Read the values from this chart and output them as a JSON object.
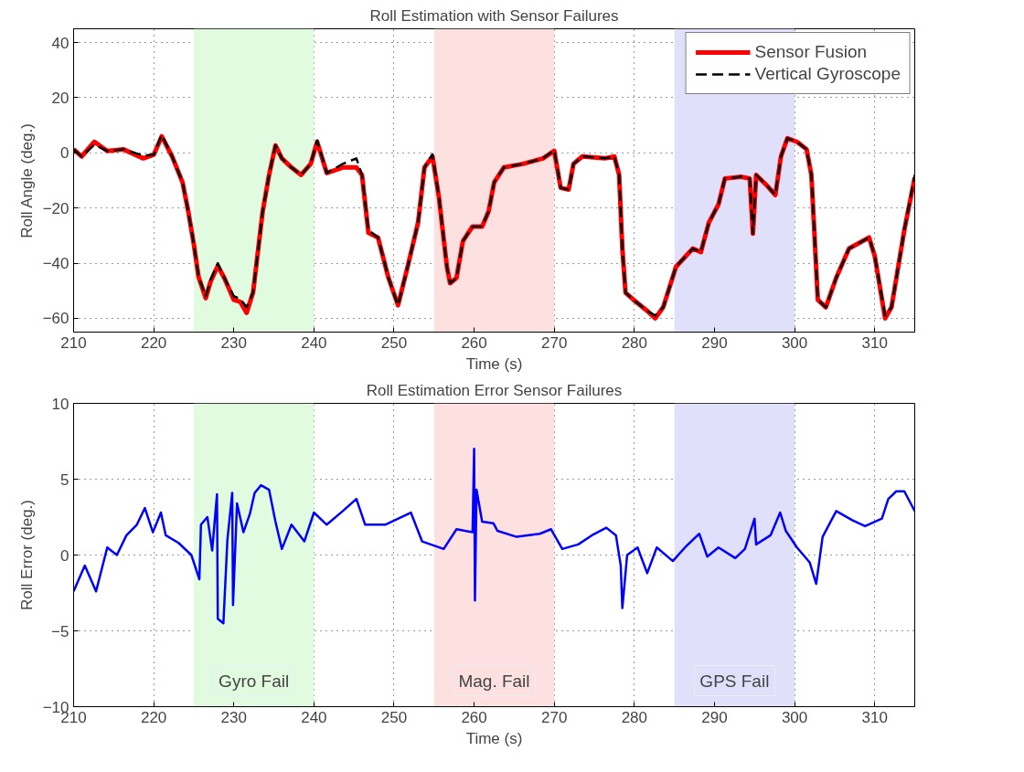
{
  "chart_data": [
    {
      "type": "line",
      "title": "Roll Estimation with Sensor Failures",
      "xlabel": "Time (s)",
      "ylabel": "Roll Angle (deg.)",
      "xlim": [
        210,
        315
      ],
      "xticks": [
        210,
        220,
        230,
        240,
        250,
        260,
        270,
        280,
        290,
        300,
        310
      ],
      "ylim": [
        -65,
        45
      ],
      "yticks": [
        -60,
        -40,
        -20,
        0,
        20,
        40
      ],
      "grid": true,
      "legend": "top right",
      "x": [
        210,
        211,
        212.6,
        214.2,
        216.2,
        218.7,
        220,
        221,
        222.3,
        223.6,
        224.3,
        225,
        225.6,
        226.5,
        227.1,
        228,
        228.8,
        230,
        230.8,
        231.6,
        232.4,
        233.6,
        234.4,
        235.2,
        236,
        237.2,
        238.4,
        239.6,
        240.4,
        241.6,
        243.6,
        245.3,
        246,
        246.8,
        248,
        249.3,
        250.5,
        251.7,
        253,
        253.8,
        254.8,
        255.6,
        256.6,
        257,
        257.8,
        258.6,
        259.8,
        261,
        261.8,
        262.5,
        263.7,
        266.1,
        268.6,
        270,
        270.8,
        271.8,
        272.4,
        273.5,
        276.3,
        277.5,
        278.1,
        278.5,
        278.9,
        279.9,
        281.6,
        282.6,
        283.6,
        285.2,
        287.3,
        288.3,
        289.3,
        290.5,
        291.3,
        293.3,
        294.4,
        294.8,
        295.2,
        296.6,
        297.6,
        298.3,
        299.1,
        300.3,
        301.5,
        302.1,
        302.9,
        303.9,
        305.2,
        306.8,
        309.3,
        310,
        311.3,
        312.1,
        313.7,
        315
      ],
      "series": [
        {
          "name": "Sensor Fusion",
          "color": "#ff0000",
          "line_style": "solid",
          "values": [
            1.3,
            -1.3,
            4,
            0.7,
            1.3,
            -2,
            -0.7,
            6,
            -1.3,
            -10.7,
            -21,
            -33,
            -45,
            -52.7,
            -46.7,
            -41,
            -45.3,
            -53.3,
            -54,
            -58,
            -50.7,
            -21.3,
            -8,
            2.7,
            -2,
            -5.3,
            -8,
            -4,
            4,
            -7.3,
            -5.3,
            -5.3,
            -8,
            -29,
            -30.7,
            -45.3,
            -55.3,
            -41.3,
            -25.3,
            -5.3,
            -1.3,
            -16,
            -41.3,
            -47.3,
            -45.3,
            -32,
            -26.7,
            -26.7,
            -21.3,
            -10.7,
            -5.3,
            -4,
            -2,
            0.7,
            -12.7,
            -13.3,
            -4,
            -1.3,
            -2,
            -1.3,
            -8,
            -34.7,
            -50.7,
            -53.3,
            -57.3,
            -60,
            -56,
            -41.3,
            -34.7,
            -36,
            -25.3,
            -18.7,
            -9.3,
            -8.7,
            -9.3,
            -29.3,
            -8,
            -12,
            -15.3,
            -1.3,
            5.3,
            4,
            1.3,
            -8,
            -53.3,
            -56,
            -45.3,
            -34.7,
            -30.7,
            -37.3,
            -60,
            -56,
            -28,
            -9
          ]
        },
        {
          "name": "Vertical Gyroscope",
          "color": "#000000",
          "line_style": "dashed",
          "values": [
            1.3,
            -1.3,
            3,
            0.7,
            1.3,
            -1,
            -0.7,
            6.5,
            -1.3,
            -10.7,
            -21,
            -33,
            -45,
            -52,
            -46,
            -40,
            -45.3,
            -52,
            -53,
            -56,
            -50.7,
            -21.3,
            -8,
            2.7,
            -2,
            -5.3,
            -8,
            -4,
            4.5,
            -7.3,
            -4,
            -2,
            -8,
            -28,
            -30.7,
            -45.3,
            -55.3,
            -41.3,
            -25.3,
            -5.3,
            -0.5,
            -16,
            -41.3,
            -47.3,
            -45.3,
            -32,
            -26.7,
            -26.7,
            -21.3,
            -10.7,
            -5.3,
            -4,
            -2,
            1,
            -12.7,
            -13.3,
            -4,
            -1.3,
            -2,
            -1.3,
            -8,
            -34.7,
            -50.7,
            -53.3,
            -57.3,
            -59,
            -56,
            -41.3,
            -34.7,
            -36,
            -25.3,
            -18.7,
            -9.3,
            -8.7,
            -9.3,
            -29.3,
            -8,
            -12,
            -15.3,
            -1.3,
            5.3,
            4,
            1.3,
            -8,
            -53.3,
            -56,
            -45.3,
            -34.7,
            -30.7,
            -37.3,
            -59,
            -56,
            -28,
            -8
          ]
        }
      ],
      "bands": [
        {
          "axis": "x",
          "from": 225,
          "to": 240,
          "color": "#e0fbe0"
        },
        {
          "axis": "x",
          "from": 255,
          "to": 270,
          "color": "#fde0e0"
        },
        {
          "axis": "x",
          "from": 285,
          "to": 300,
          "color": "#e0e0fb"
        }
      ]
    },
    {
      "type": "line",
      "title": "Roll Estimation Error Sensor Failures",
      "xlabel": "Time (s)",
      "ylabel": "Roll Error (deg.)",
      "xlim": [
        210,
        315
      ],
      "xticks": [
        210,
        220,
        230,
        240,
        250,
        260,
        270,
        280,
        290,
        300,
        310
      ],
      "ylim": [
        -10,
        10
      ],
      "yticks": [
        -10,
        -5,
        0,
        5,
        10
      ],
      "grid": true,
      "x": [
        210,
        211.4,
        212.8,
        214.2,
        215.4,
        216.6,
        217.9,
        218.9,
        219.9,
        220.9,
        221.5,
        223.1,
        224.7,
        225.7,
        225.9,
        226.7,
        227.3,
        227.9,
        228,
        228.7,
        229.2,
        229.8,
        229.9,
        230.4,
        231.2,
        232,
        232.6,
        233.4,
        234.4,
        235.2,
        236,
        237.2,
        238.8,
        240,
        241.6,
        243.6,
        245.3,
        246.4,
        248.9,
        252.1,
        253.5,
        256.2,
        257.8,
        259.8,
        260,
        260.1,
        260.3,
        261,
        262.4,
        262.9,
        265.3,
        268.2,
        269.6,
        271,
        273,
        274.7,
        276.5,
        277.7,
        278.3,
        278.5,
        279.1,
        280.4,
        281.6,
        282.8,
        284.8,
        286.5,
        288.1,
        289.1,
        290.5,
        292.6,
        293.8,
        295,
        295.2,
        297,
        298.2,
        298.9,
        300.3,
        301.9,
        302.7,
        303.5,
        305.2,
        307.2,
        308.8,
        310.9,
        311.7,
        312.7,
        313.7,
        315
      ],
      "series": [
        {
          "color": "#0000ff",
          "line_style": "solid",
          "values": [
            -2.4,
            -0.7,
            -2.4,
            0.5,
            0,
            1.3,
            2,
            3.1,
            1.5,
            2.8,
            1.3,
            0.8,
            0,
            -1.6,
            2,
            2.5,
            0.3,
            4,
            -4.2,
            -4.5,
            1,
            4.1,
            -3.3,
            3.4,
            1.5,
            2.7,
            4.1,
            4.6,
            4.3,
            2.2,
            0.4,
            2,
            0.9,
            2.8,
            2,
            2.9,
            3.7,
            2,
            2,
            2.8,
            0.9,
            0.4,
            1.7,
            1.5,
            7,
            -3,
            4.3,
            2.2,
            2.1,
            1.6,
            1.2,
            1.4,
            1.7,
            0.4,
            0.7,
            1.3,
            1.8,
            1.3,
            -0.7,
            -3.5,
            0,
            0.5,
            -1.2,
            0.5,
            -0.4,
            0.6,
            1.4,
            -0.1,
            0.5,
            -0.2,
            0.4,
            2.4,
            0.7,
            1.3,
            2.8,
            1.6,
            0.5,
            -0.5,
            -1.9,
            1.2,
            2.9,
            2.3,
            1.9,
            2.4,
            3.7,
            4.2,
            4.2,
            2.9
          ]
        }
      ],
      "bands": [
        {
          "axis": "x",
          "from": 225,
          "to": 240,
          "color": "#e0fbe0",
          "label": "Gyro Fail"
        },
        {
          "axis": "x",
          "from": 255,
          "to": 270,
          "color": "#fde0e0",
          "label": "Mag. Fail"
        },
        {
          "axis": "x",
          "from": 285,
          "to": 300,
          "color": "#e0e0fb",
          "label": "GPS Fail"
        }
      ]
    }
  ]
}
